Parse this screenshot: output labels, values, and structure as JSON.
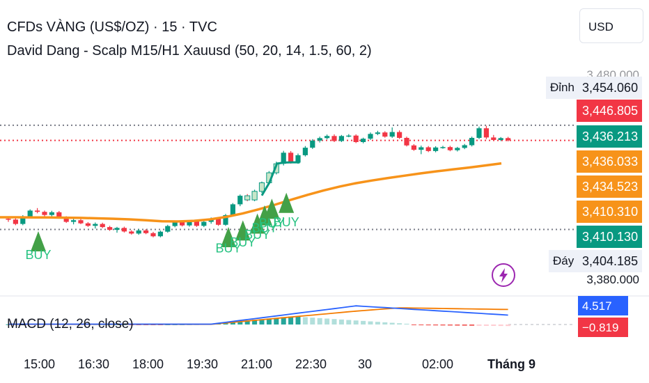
{
  "header": {
    "symbol_title": "CFDs VÀNG (US$/OZ) · 15 · TVC",
    "indicator_title": "David Dang - Scalp M15/H1 Xauusd (50, 20, 14, 1.5, 60, 2)",
    "currency_button": "USD"
  },
  "price_scale": {
    "faded_top": "3,480.000",
    "faded_bottom": "3,380.000",
    "high_tag": "Đỉnh",
    "low_tag": "Đáy",
    "labels": [
      {
        "text": "3,454.060",
        "color": "#eef1f8",
        "text_color": "#131722"
      },
      {
        "text": "3,446.805",
        "color": "#f23645",
        "text_color": "#ffffff"
      },
      {
        "text": "3,436.213",
        "color": "#089981",
        "text_color": "#ffffff"
      },
      {
        "text": "3,436.033",
        "color": "#f7931a",
        "text_color": "#ffffff"
      },
      {
        "text": "3,434.523",
        "color": "#f7931a",
        "text_color": "#ffffff"
      },
      {
        "text": "3,410.310",
        "color": "#f7931a",
        "text_color": "#ffffff"
      },
      {
        "text": "3,410.130",
        "color": "#089981",
        "text_color": "#ffffff"
      },
      {
        "text": "3,404.185",
        "color": "#eef1f8",
        "text_color": "#131722"
      }
    ]
  },
  "macd": {
    "title": "MACD (12, 26, close)",
    "macd_value": "4.517",
    "hist_value": "−0.819",
    "macd_color": "#2962ff",
    "signal_color": "#f57c00"
  },
  "time_axis": [
    "15:00",
    "16:30",
    "18:00",
    "19:30",
    "21:00",
    "22:30",
    "30",
    "02:00",
    "Tháng 9"
  ],
  "chart_data": {
    "type": "candlestick",
    "ylim": [
      3380,
      3480
    ],
    "up_color": "#089981",
    "down_color": "#f23645",
    "ema_color": "#f7931a",
    "signal_label": "BUY",
    "candles": [
      [
        3409.3,
        3410.2,
        3407.8,
        3408.9
      ],
      [
        3408.9,
        3409.5,
        3406.2,
        3406.8
      ],
      [
        3406.8,
        3411.0,
        3406.2,
        3410.1
      ],
      [
        3410.1,
        3413.8,
        3409.6,
        3413.2
      ],
      [
        3413.2,
        3414.4,
        3411.9,
        3412.6
      ],
      [
        3412.6,
        3413.2,
        3410.4,
        3411.1
      ],
      [
        3411.1,
        3413.1,
        3410.5,
        3412.4
      ],
      [
        3412.4,
        3413.0,
        3409.4,
        3409.9
      ],
      [
        3409.9,
        3410.5,
        3407.3,
        3407.8
      ],
      [
        3407.8,
        3409.2,
        3406.6,
        3408.6
      ],
      [
        3408.6,
        3409.2,
        3406.7,
        3407.1
      ],
      [
        3407.1,
        3407.7,
        3405.4,
        3405.9
      ],
      [
        3405.9,
        3407.5,
        3404.6,
        3406.8
      ],
      [
        3406.8,
        3407.4,
        3404.8,
        3405.3
      ],
      [
        3405.3,
        3405.9,
        3403.5,
        3404.0
      ],
      [
        3404.0,
        3405.4,
        3402.6,
        3404.9
      ],
      [
        3404.9,
        3405.5,
        3402.7,
        3403.2
      ],
      [
        3403.2,
        3403.8,
        3401.7,
        3402.2
      ],
      [
        3402.2,
        3404.4,
        3401.6,
        3403.7
      ],
      [
        3403.7,
        3404.3,
        3401.9,
        3402.4
      ],
      [
        3402.4,
        3403.0,
        3400.4,
        3400.9
      ],
      [
        3400.9,
        3403.6,
        3400.4,
        3403.1
      ],
      [
        3403.1,
        3406.4,
        3402.6,
        3405.8
      ],
      [
        3405.8,
        3408.4,
        3405.2,
        3407.7
      ],
      [
        3407.7,
        3408.3,
        3405.6,
        3406.1
      ],
      [
        3406.1,
        3408.6,
        3405.5,
        3408.0
      ],
      [
        3408.0,
        3408.6,
        3405.4,
        3405.9
      ],
      [
        3405.9,
        3408.4,
        3405.3,
        3407.8
      ],
      [
        3407.8,
        3409.9,
        3406.9,
        3409.2
      ],
      [
        3409.2,
        3409.8,
        3405.9,
        3406.4
      ],
      [
        3406.4,
        3411.6,
        3405.9,
        3411.0
      ],
      [
        3411.0,
        3416.8,
        3410.4,
        3416.2
      ],
      [
        3416.2,
        3420.9,
        3415.3,
        3420.3
      ],
      [
        3420.3,
        3421.1,
        3417.7,
        3418.3
      ],
      [
        3418.3,
        3423.2,
        3417.7,
        3422.4
      ],
      [
        3422.4,
        3427.1,
        3421.6,
        3426.5
      ],
      [
        3426.5,
        3432.1,
        3425.7,
        3431.3
      ],
      [
        3431.3,
        3436.6,
        3430.5,
        3435.6
      ],
      [
        3435.6,
        3441.8,
        3434.8,
        3440.9
      ],
      [
        3440.9,
        3441.7,
        3435.7,
        3436.2
      ],
      [
        3436.2,
        3440.5,
        3435.6,
        3439.7
      ],
      [
        3439.7,
        3444.1,
        3439.1,
        3443.3
      ],
      [
        3443.3,
        3447.4,
        3442.7,
        3446.7
      ],
      [
        3446.7,
        3448.6,
        3445.8,
        3447.9
      ],
      [
        3447.9,
        3449.6,
        3447.3,
        3448.9
      ],
      [
        3448.9,
        3449.7,
        3446.0,
        3446.5
      ],
      [
        3446.5,
        3449.4,
        3446.0,
        3448.9
      ],
      [
        3448.9,
        3449.8,
        3448.3,
        3449.1
      ],
      [
        3449.1,
        3449.7,
        3445.5,
        3446.0
      ],
      [
        3446.0,
        3448.1,
        3445.4,
        3447.6
      ],
      [
        3447.6,
        3450.6,
        3447.0,
        3449.9
      ],
      [
        3449.9,
        3451.4,
        3449.3,
        3450.6
      ],
      [
        3450.6,
        3451.2,
        3448.1,
        3448.6
      ],
      [
        3448.6,
        3453.0,
        3448.0,
        3450.8
      ],
      [
        3450.8,
        3451.6,
        3447.5,
        3448.0
      ],
      [
        3448.0,
        3448.6,
        3443.9,
        3444.4
      ],
      [
        3444.4,
        3445.0,
        3441.8,
        3442.3
      ],
      [
        3442.3,
        3444.3,
        3440.2,
        3443.5
      ],
      [
        3443.5,
        3444.1,
        3441.2,
        3441.7
      ],
      [
        3441.7,
        3444.0,
        3441.1,
        3443.4
      ],
      [
        3443.4,
        3444.2,
        3442.8,
        3443.6
      ],
      [
        3443.6,
        3444.2,
        3441.6,
        3442.1
      ],
      [
        3442.1,
        3443.7,
        3441.5,
        3443.2
      ],
      [
        3443.2,
        3445.1,
        3442.6,
        3444.5
      ],
      [
        3444.5,
        3448.6,
        3443.9,
        3448.0
      ],
      [
        3448.0,
        3453.4,
        3447.4,
        3452.6
      ],
      [
        3452.6,
        3453.8,
        3447.4,
        3448.2
      ],
      [
        3448.2,
        3449.4,
        3446.6,
        3447.0
      ],
      [
        3447.0,
        3448.4,
        3446.5,
        3447.9
      ],
      [
        3447.9,
        3448.5,
        3446.3,
        3446.8
      ]
    ],
    "ema": [
      3410.0,
      3410.0,
      3409.9,
      3409.9,
      3409.8,
      3409.7,
      3409.5,
      3409.3,
      3409.0,
      3408.6,
      3408.1,
      3408.0,
      3408.3,
      3409.0,
      3410.2,
      3411.8,
      3413.8,
      3416.0,
      3418.4,
      3420.7,
      3422.8,
      3424.7,
      3426.3,
      3427.6,
      3428.8,
      3429.9,
      3431.0,
      3432.0,
      3432.9,
      3433.8,
      3434.8,
      3435.8
    ],
    "buy_signals": [
      {
        "index": 4,
        "price": 3398.0,
        "text_price": 3390.0
      },
      {
        "index": 30,
        "price": 3400.0,
        "text_price": 3393.2
      },
      {
        "index": 32,
        "price": 3403.2,
        "text_price": 3396.0
      },
      {
        "index": 34,
        "price": 3406.5,
        "text_price": 3399.6
      },
      {
        "index": 35,
        "price": 3410.4,
        "text_price": 3402.8
      },
      {
        "index": 36,
        "price": 3413.6,
        "text_price": 3405.2
      },
      {
        "index": 38,
        "price": 3416.4,
        "text_price": 3405.6
      }
    ],
    "trail_line": [
      3420.4,
      3426.6,
      3435.7,
      3436.2,
      3436.3,
      3436.3
    ]
  }
}
